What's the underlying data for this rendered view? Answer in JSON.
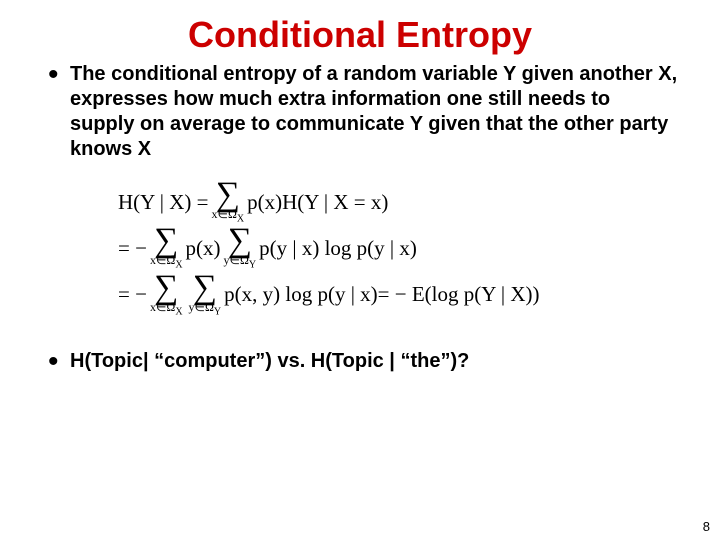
{
  "title": {
    "text": "Conditional  Entropy",
    "color": "#cc0000",
    "fontsize": 36
  },
  "bullets": [
    {
      "text": "The conditional entropy of a random variable Y given another X, expresses how much extra information one still needs to supply on average to communicate Y given that the other party knows X",
      "fontsize": 20,
      "color": "#000000"
    },
    {
      "text": "H(Topic| “computer”) vs. H(Topic | “the”)?",
      "fontsize": 20,
      "color": "#000000"
    }
  ],
  "math": {
    "color": "#000000",
    "fontsize": 21,
    "sigma_sub_X": "x∈Ω",
    "sigma_sub_Xtail": "X",
    "sigma_sub_Y": "y∈Ω",
    "sigma_sub_Ytail": "Y",
    "line1_left": "H(Y | X) =",
    "line1_right": "p(x)H(Y | X = x)",
    "line2_left": "= −",
    "line2_mid": "p(x)",
    "line2_right": "p(y | x) log p(y | x)",
    "line3_left": "= −",
    "line3_mid": "p(x, y) log p(y | x)",
    "line3_right": " = − E(log p(Y | X))"
  },
  "page_number": "8"
}
